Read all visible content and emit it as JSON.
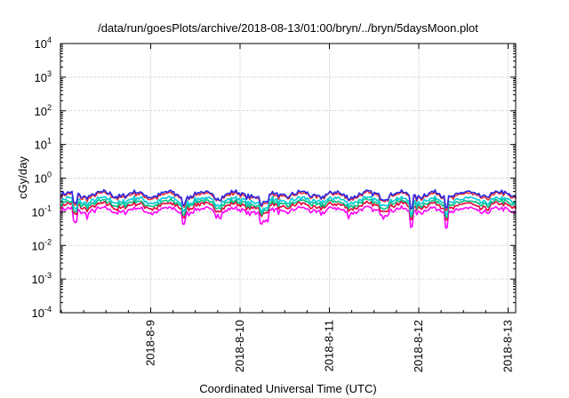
{
  "chart_data": {
    "type": "line",
    "title": "/data/run/goesPlots/archive/2018-08-13/01:00/bryn/../bryn/5daysMoon.plot",
    "xlabel": "Coordinated Universal Time (UTC)",
    "ylabel": "cGy/day",
    "yscale": "log",
    "ylim": [
      0.0001,
      10000
    ],
    "y_ticks": [
      {
        "value": 0.0001,
        "base": "10",
        "exp": "-4"
      },
      {
        "value": 0.001,
        "base": "10",
        "exp": "-3"
      },
      {
        "value": 0.01,
        "base": "10",
        "exp": "-2"
      },
      {
        "value": 0.1,
        "base": "10",
        "exp": "-1"
      },
      {
        "value": 1,
        "base": "10",
        "exp": "0"
      },
      {
        "value": 10,
        "base": "10",
        "exp": "1"
      },
      {
        "value": 100,
        "base": "10",
        "exp": "2"
      },
      {
        "value": 1000,
        "base": "10",
        "exp": "3"
      },
      {
        "value": 10000,
        "base": "10",
        "exp": "4"
      }
    ],
    "x_ticks": [
      {
        "label": "2018-8-9",
        "day": 1
      },
      {
        "label": "2018-8-10",
        "day": 2
      },
      {
        "label": "2018-8-11",
        "day": 3
      },
      {
        "label": "2018-8-12",
        "day": 4
      },
      {
        "label": "2018-8-13",
        "day": 5
      }
    ],
    "grid": true,
    "legend": "none",
    "series": [
      {
        "color": "#ff00ff",
        "approx_level": 0.11
      },
      {
        "color": "#e8003a",
        "approx_level": 0.15
      },
      {
        "color": "#00c080",
        "approx_level": 0.18
      },
      {
        "color": "#00c8d8",
        "approx_level": 0.22
      },
      {
        "color": "#e83030",
        "approx_level": 0.3
      },
      {
        "color": "#2a2ae8",
        "approx_level": 0.33
      }
    ]
  }
}
